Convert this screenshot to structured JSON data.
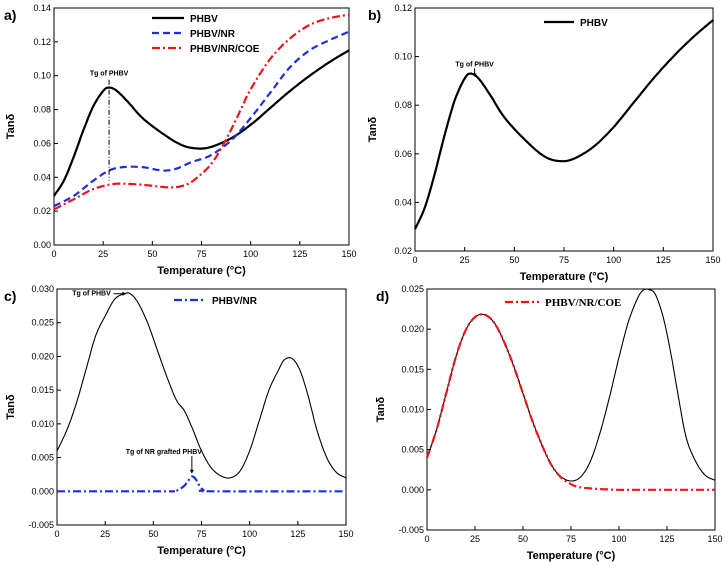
{
  "chart_data": [
    {
      "panel": "a)",
      "type": "line",
      "xlabel": "Temperature (°C)",
      "ylabel": "Tanδ",
      "xlim": [
        0,
        150
      ],
      "ylim": [
        0,
        0.14
      ],
      "xticks": [
        0,
        25,
        50,
        75,
        100,
        125,
        150
      ],
      "yticks": [
        0.0,
        0.02,
        0.04,
        0.06,
        0.08,
        0.1,
        0.12,
        0.14
      ],
      "ytick_labels": [
        "0.00",
        "0.02",
        "0.04",
        "0.06",
        "0.08",
        "0.10",
        "0.12",
        "0.14"
      ],
      "legend_position": "top-right",
      "series": [
        {
          "name": "PHBV",
          "color": "#000000",
          "style": "solid",
          "x": [
            0,
            5,
            10,
            15,
            20,
            25,
            28,
            32,
            38,
            45,
            55,
            65,
            73,
            80,
            90,
            100,
            110,
            120,
            130,
            140,
            150
          ],
          "y": [
            0.029,
            0.038,
            0.052,
            0.068,
            0.082,
            0.091,
            0.093,
            0.091,
            0.084,
            0.075,
            0.066,
            0.059,
            0.057,
            0.058,
            0.063,
            0.071,
            0.081,
            0.091,
            0.1,
            0.108,
            0.115
          ]
        },
        {
          "name": "PHBV/NR",
          "color": "#1f2fd6",
          "style": "dashed",
          "x": [
            0,
            10,
            20,
            28,
            35,
            45,
            55,
            62,
            70,
            78,
            85,
            92,
            100,
            110,
            120,
            130,
            140,
            150
          ],
          "y": [
            0.023,
            0.029,
            0.038,
            0.044,
            0.046,
            0.046,
            0.044,
            0.045,
            0.049,
            0.052,
            0.057,
            0.064,
            0.075,
            0.09,
            0.105,
            0.115,
            0.121,
            0.126
          ]
        },
        {
          "name": "PHBV/NR/COE",
          "color": "#e8151b",
          "style": "dashdot",
          "x": [
            0,
            10,
            20,
            30,
            40,
            50,
            60,
            68,
            75,
            80,
            85,
            90,
            95,
            100,
            110,
            120,
            130,
            140,
            150
          ],
          "y": [
            0.021,
            0.027,
            0.033,
            0.036,
            0.036,
            0.035,
            0.034,
            0.036,
            0.042,
            0.048,
            0.057,
            0.068,
            0.08,
            0.092,
            0.11,
            0.122,
            0.13,
            0.134,
            0.136
          ]
        }
      ],
      "annotations": [
        {
          "text": "Tg of PHBV",
          "x": 28,
          "y": 0.1
        }
      ]
    },
    {
      "panel": "b)",
      "type": "line",
      "xlabel": "Temperature (°C)",
      "ylabel": "Tanδ",
      "xlim": [
        0,
        150
      ],
      "ylim": [
        0.02,
        0.12
      ],
      "xticks": [
        0,
        25,
        50,
        75,
        100,
        125,
        150
      ],
      "yticks": [
        0.02,
        0.04,
        0.06,
        0.08,
        0.1,
        0.12
      ],
      "ytick_labels": [
        "0.02",
        "0.04",
        "0.06",
        "0.08",
        "0.10",
        "0.12"
      ],
      "legend_position": "top-right",
      "series": [
        {
          "name": "PHBV",
          "color": "#000000",
          "style": "solid",
          "x": [
            0,
            5,
            10,
            15,
            20,
            25,
            28,
            32,
            38,
            45,
            55,
            65,
            73,
            80,
            90,
            100,
            110,
            120,
            130,
            140,
            150
          ],
          "y": [
            0.029,
            0.038,
            0.052,
            0.068,
            0.082,
            0.091,
            0.093,
            0.091,
            0.084,
            0.075,
            0.066,
            0.059,
            0.057,
            0.058,
            0.063,
            0.071,
            0.081,
            0.091,
            0.1,
            0.108,
            0.115
          ]
        }
      ],
      "annotations": [
        {
          "text": "Tg of PHBV",
          "x": 30,
          "y": 0.096
        }
      ]
    },
    {
      "panel": "c)",
      "type": "line",
      "xlabel": "Temperature (°C)",
      "ylabel": "Tanδ",
      "xlim": [
        0,
        150
      ],
      "ylim": [
        -0.005,
        0.03
      ],
      "xticks": [
        0,
        25,
        50,
        75,
        100,
        125,
        150
      ],
      "yticks": [
        -0.005,
        0.0,
        0.005,
        0.01,
        0.015,
        0.02,
        0.025,
        0.03
      ],
      "ytick_labels": [
        "-0.005",
        "0.000",
        "0.005",
        "0.010",
        "0.015",
        "0.020",
        "0.025",
        "0.030"
      ],
      "legend_position": "top-right",
      "series": [
        {
          "name": "",
          "color": "#000000",
          "style": "solid-thin",
          "x": [
            0,
            5,
            10,
            15,
            20,
            25,
            30,
            35,
            38,
            42,
            47,
            52,
            57,
            62,
            66,
            70,
            75,
            80,
            85,
            90,
            95,
            100,
            105,
            110,
            115,
            118,
            122,
            126,
            130,
            135,
            140,
            145,
            150
          ],
          "y": [
            0.006,
            0.009,
            0.013,
            0.018,
            0.023,
            0.026,
            0.0285,
            0.0293,
            0.0293,
            0.028,
            0.025,
            0.021,
            0.017,
            0.0135,
            0.012,
            0.0095,
            0.006,
            0.0035,
            0.0023,
            0.002,
            0.003,
            0.006,
            0.0105,
            0.015,
            0.018,
            0.0195,
            0.0197,
            0.018,
            0.0145,
            0.009,
            0.005,
            0.0028,
            0.002
          ]
        },
        {
          "name": "PHBV/NR",
          "color": "#1f2fd6",
          "style": "dashdot",
          "x": [
            0,
            55,
            60,
            63,
            66,
            68,
            70,
            72,
            74,
            76,
            80,
            150
          ],
          "y": [
            0,
            0,
            0,
            0.0002,
            0.0008,
            0.0015,
            0.0022,
            0.0018,
            0.0008,
            0.0002,
            0,
            0
          ]
        }
      ],
      "annotations": [
        {
          "text": "Tg of PHBV",
          "x": 20,
          "y": 0.0293
        },
        {
          "text": "Tg of NR grafted PHBV",
          "x": 70,
          "y": 0.0055
        }
      ]
    },
    {
      "panel": "d)",
      "type": "line",
      "xlabel": "Temperature (°C)",
      "ylabel": "Tanδ",
      "xlim": [
        0,
        150
      ],
      "ylim": [
        -0.005,
        0.025
      ],
      "xticks": [
        0,
        25,
        50,
        75,
        100,
        125,
        150
      ],
      "yticks": [
        -0.005,
        0.0,
        0.005,
        0.01,
        0.015,
        0.02,
        0.025
      ],
      "ytick_labels": [
        "-0.005",
        "0.000",
        "0.005",
        "0.010",
        "0.015",
        "0.020",
        "0.025"
      ],
      "legend_position": "top-left",
      "series": [
        {
          "name": "",
          "color": "#000000",
          "style": "solid-thin",
          "x": [
            0,
            5,
            10,
            15,
            20,
            25,
            30,
            35,
            40,
            45,
            50,
            55,
            60,
            65,
            70,
            75,
            80,
            85,
            90,
            95,
            100,
            105,
            110,
            113,
            116,
            119,
            123,
            127,
            131,
            135,
            140,
            145,
            150
          ],
          "y": [
            0.004,
            0.0075,
            0.012,
            0.0165,
            0.0198,
            0.0215,
            0.0218,
            0.0208,
            0.0185,
            0.0155,
            0.012,
            0.0085,
            0.0055,
            0.003,
            0.0016,
            0.0011,
            0.0016,
            0.0035,
            0.007,
            0.0115,
            0.0165,
            0.021,
            0.024,
            0.0249,
            0.0249,
            0.0243,
            0.0215,
            0.017,
            0.0115,
            0.0065,
            0.0035,
            0.0018,
            0.0012
          ]
        },
        {
          "name": "PHBV/NR/COE",
          "color": "#e8151b",
          "style": "dashdot",
          "x": [
            0,
            5,
            10,
            15,
            20,
            25,
            30,
            35,
            40,
            45,
            50,
            55,
            60,
            65,
            70,
            75,
            80,
            90,
            100,
            110,
            120,
            130,
            140,
            150
          ],
          "y": [
            0.004,
            0.0075,
            0.012,
            0.0165,
            0.0198,
            0.0215,
            0.0218,
            0.0208,
            0.0185,
            0.0155,
            0.012,
            0.0085,
            0.0055,
            0.003,
            0.0015,
            0.0007,
            0.0003,
            0.0001,
            0,
            0,
            0,
            0,
            0,
            0
          ]
        }
      ],
      "annotations": []
    }
  ]
}
